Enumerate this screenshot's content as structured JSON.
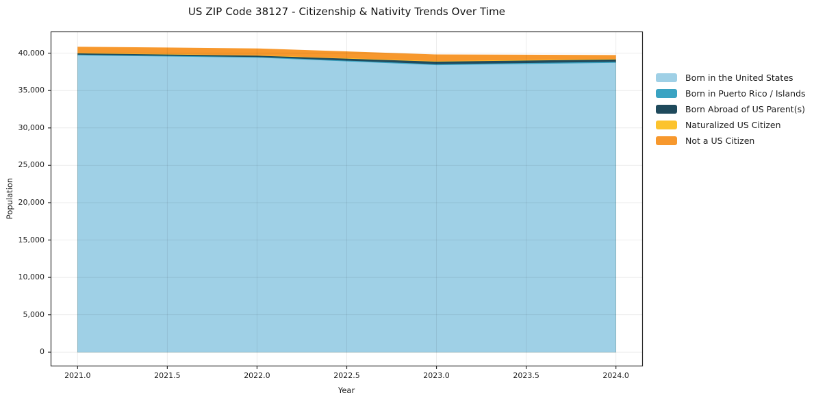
{
  "chart_data": {
    "type": "area",
    "stacked": true,
    "title": "US ZIP Code 38127 - Citizenship & Nativity Trends Over Time",
    "xlabel": "Year",
    "ylabel": "Population",
    "x": [
      2021,
      2022,
      2023,
      2024
    ],
    "series": [
      {
        "name": "Born in the United States",
        "color": "#9fd0e6",
        "values": [
          39700,
          39400,
          38400,
          38700
        ]
      },
      {
        "name": "Born in Puerto Rico / Islands",
        "color": "#3aa3c2",
        "values": [
          100,
          90,
          120,
          150
        ]
      },
      {
        "name": "Born Abroad of US Parent(s)",
        "color": "#1f4a5c",
        "values": [
          180,
          180,
          350,
          300
        ]
      },
      {
        "name": "Naturalized US Citizen",
        "color": "#fcc32d",
        "values": [
          60,
          50,
          60,
          80
        ]
      },
      {
        "name": "Not a US Citizen",
        "color": "#f7982d",
        "values": [
          830,
          920,
          900,
          520
        ]
      }
    ],
    "stack_totals": [
      40870,
      40640,
      39830,
      39750
    ],
    "xticks": [
      2021.0,
      2021.5,
      2022.0,
      2022.5,
      2023.0,
      2023.5,
      2024.0
    ],
    "xtick_labels": [
      "2021.0",
      "2021.5",
      "2022.0",
      "2022.5",
      "2023.0",
      "2023.5",
      "2024.0"
    ],
    "yticks": [
      0,
      5000,
      10000,
      15000,
      20000,
      25000,
      30000,
      35000,
      40000
    ],
    "ytick_labels": [
      "0",
      "5,000",
      "10,000",
      "15,000",
      "20,000",
      "25,000",
      "30,000",
      "35,000",
      "40,000"
    ],
    "xlim": [
      2020.85,
      2024.15
    ],
    "ylim": [
      -1900,
      42900
    ],
    "grid": true,
    "grid_color": "rgba(0,0,0,0.08)",
    "spine_color": "#2a2a2a",
    "legend_position": "right"
  }
}
